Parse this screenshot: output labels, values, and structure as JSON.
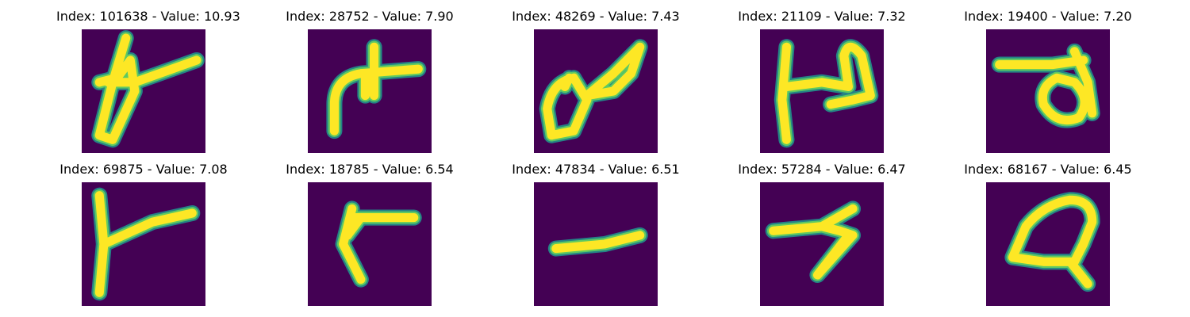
{
  "colors": {
    "background": "#440154",
    "stroke_core": "#fde725",
    "stroke_edge": "#21918c",
    "stroke_mid": "#5ec962"
  },
  "panels": [
    {
      "title": "Index: 101638 - Value: 10.93"
    },
    {
      "title": "Index: 28752 - Value: 7.90"
    },
    {
      "title": "Index: 48269 - Value: 7.43"
    },
    {
      "title": "Index: 21109 - Value: 7.32"
    },
    {
      "title": "Index: 19400 - Value: 7.20"
    },
    {
      "title": "Index: 69875 - Value: 7.08"
    },
    {
      "title": "Index: 18785 - Value: 6.54"
    },
    {
      "title": "Index: 47834 - Value: 6.51"
    },
    {
      "title": "Index: 57284 - Value: 6.47"
    },
    {
      "title": "Index: 68167 - Value: 6.45"
    }
  ]
}
